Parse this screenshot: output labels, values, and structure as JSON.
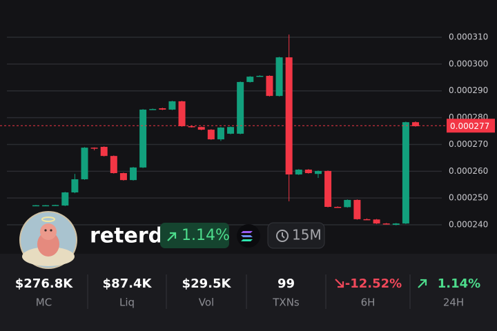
{
  "chart_data": {
    "type": "candlestick",
    "open": [
      0.0002472,
      0.0002473,
      0.0002473,
      0.0002472,
      0.0002521,
      0.000257,
      0.0002688,
      0.0002691,
      0.0002657,
      0.0002593,
      0.0002567,
      0.0002614,
      0.0002831,
      0.0002835,
      0.000283,
      0.0002861,
      0.0002768,
      0.0002765,
      0.0002755,
      0.0002719,
      0.000274,
      0.000274,
      0.0002933,
      0.0002955,
      0.0002956,
      0.0002881,
      0.0003025,
      0.0002588,
      0.0002606,
      0.000259,
      0.0002601,
      0.0002467,
      0.0002466,
      0.0002493,
      0.0002421,
      0.000242,
      0.0002405,
      0.00024,
      0.0002405,
      0.0002783
    ],
    "high": [
      0.0002474,
      0.0002474,
      0.0002475,
      0.0002523,
      0.000259,
      0.000269,
      0.0002689,
      0.0002693,
      0.0002659,
      0.0002595,
      0.0002616,
      0.0002832,
      0.0002834,
      0.0002837,
      0.0002863,
      0.0002863,
      0.000277,
      0.0002767,
      0.0002757,
      0.0002765,
      0.0002767,
      0.0002935,
      0.0002955,
      0.0002958,
      0.0002958,
      0.0003027,
      0.000311,
      0.0002608,
      0.0002608,
      0.0002603,
      0.0002603,
      0.0002469,
      0.0002495,
      0.0002495,
      0.0002424,
      0.0002422,
      0.0002407,
      0.0002407,
      0.0002785,
      0.0002786
    ],
    "low": [
      0.0002471,
      0.0002472,
      0.0002472,
      0.000247,
      0.0002518,
      0.0002568,
      0.0002678,
      0.0002655,
      0.0002591,
      0.0002565,
      0.0002565,
      0.0002612,
      0.0002829,
      0.0002828,
      0.0002828,
      0.0002766,
      0.0002763,
      0.0002753,
      0.0002717,
      0.0002713,
      0.0002738,
      0.0002738,
      0.0002931,
      0.0002953,
      0.0002879,
      0.0002879,
      0.0002488,
      0.0002586,
      0.0002591,
      0.0002575,
      0.0002465,
      0.0002464,
      0.0002464,
      0.0002419,
      0.0002418,
      0.0002403,
      0.0002401,
      0.0002398,
      0.0002403,
      0.0002766
    ],
    "close": [
      0.0002473,
      0.0002473,
      0.0002474,
      0.0002521,
      0.000257,
      0.0002688,
      0.0002687,
      0.0002657,
      0.0002593,
      0.0002567,
      0.0002614,
      0.000283,
      0.0002832,
      0.000283,
      0.0002861,
      0.0002768,
      0.0002765,
      0.0002755,
      0.0002719,
      0.0002763,
      0.0002765,
      0.0002933,
      0.0002953,
      0.0002956,
      0.0002881,
      0.0003025,
      0.0002588,
      0.0002606,
      0.0002593,
      0.0002601,
      0.0002467,
      0.0002466,
      0.0002493,
      0.0002421,
      0.000242,
      0.0002405,
      0.0002403,
      0.0002405,
      0.0002783,
      0.0002768
    ],
    "up_color": "#12a07d",
    "down_color": "#f23645",
    "ylim": [
      0.0002292,
      0.0003239
    ],
    "yticks": [
      {
        "value": 0.00024,
        "label": "0.000240"
      },
      {
        "value": 0.00025,
        "label": "0.000250"
      },
      {
        "value": 0.00026,
        "label": "0.000260"
      },
      {
        "value": 0.00027,
        "label": "0.000270"
      },
      {
        "value": 0.00028,
        "label": "0.000280"
      },
      {
        "value": 0.00029,
        "label": "0.000290"
      },
      {
        "value": 0.0003,
        "label": "0.000300"
      },
      {
        "value": 0.00031,
        "label": "0.000310"
      }
    ],
    "grid": true,
    "last_price": {
      "value": 0.000277,
      "label": "0.000277"
    }
  },
  "token": {
    "name": "reterd",
    "change": "1.14%",
    "interval": "15M"
  },
  "stats": [
    {
      "value": "$276.8K",
      "label": "MC"
    },
    {
      "value": "$87.4K",
      "label": "Liq"
    },
    {
      "value": "$29.5K",
      "label": "Vol"
    },
    {
      "value": "99",
      "label": "TXNs"
    },
    {
      "value": "-12.52%",
      "label": "6H"
    },
    {
      "value": "1.14%",
      "label": "24H"
    }
  ]
}
